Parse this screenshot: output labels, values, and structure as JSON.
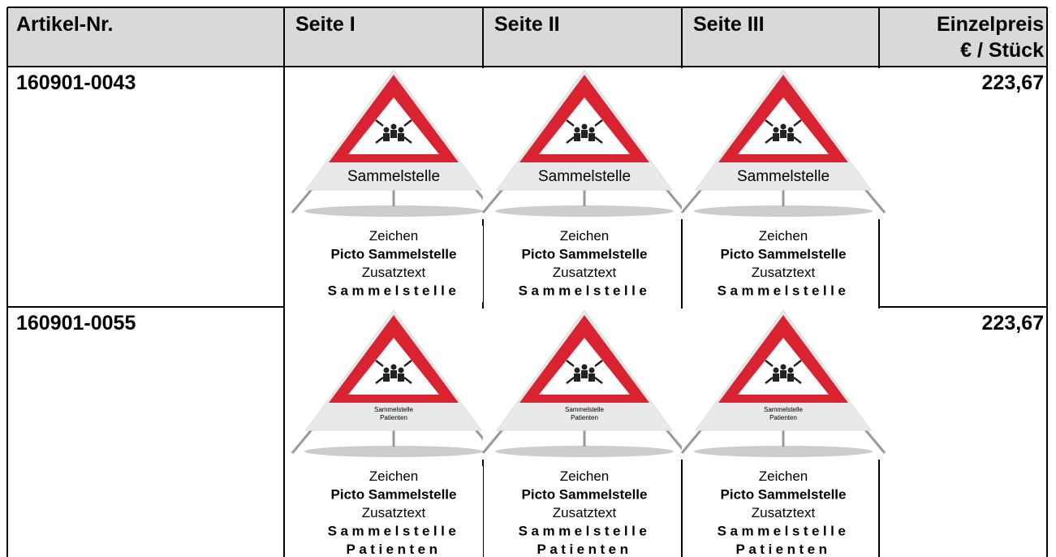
{
  "table": {
    "header": {
      "article": "Artikel-Nr.",
      "sides": [
        "Seite I",
        "Seite II",
        "Seite III"
      ],
      "price": [
        "Einzelpreis",
        "€ / Stück"
      ]
    },
    "rows": [
      {
        "article": "160901-0043",
        "price": "223,67",
        "sides": [
          {
            "sign_text": [
              "Sammelstelle"
            ],
            "caption": [
              "Zeichen",
              "Picto Sammelstelle",
              "Zusatztext",
              "Sammelstelle"
            ]
          },
          {
            "sign_text": [
              "Sammelstelle"
            ],
            "caption": [
              "Zeichen",
              "Picto Sammelstelle",
              "Zusatztext",
              "Sammelstelle"
            ]
          },
          {
            "sign_text": [
              "Sammelstelle"
            ],
            "caption": [
              "Zeichen",
              "Picto Sammelstelle",
              "Zusatztext",
              "Sammelstelle"
            ]
          }
        ]
      },
      {
        "article": "160901-0055",
        "price": "223,67",
        "sides": [
          {
            "sign_text": [
              "Sammelstelle",
              "Patienten"
            ],
            "caption": [
              "Zeichen",
              "Picto Sammelstelle",
              "Zusatztext",
              "Sammelstelle",
              "Patienten"
            ]
          },
          {
            "sign_text": [
              "Sammelstelle",
              "Patienten"
            ],
            "caption": [
              "Zeichen",
              "Picto Sammelstelle",
              "Zusatztext",
              "Sammelstelle",
              "Patienten"
            ]
          },
          {
            "sign_text": [
              "Sammelstelle",
              "Patienten"
            ],
            "caption": [
              "Zeichen",
              "Picto Sammelstelle",
              "Zusatztext",
              "Sammelstelle",
              "Patienten"
            ]
          }
        ]
      }
    ]
  }
}
